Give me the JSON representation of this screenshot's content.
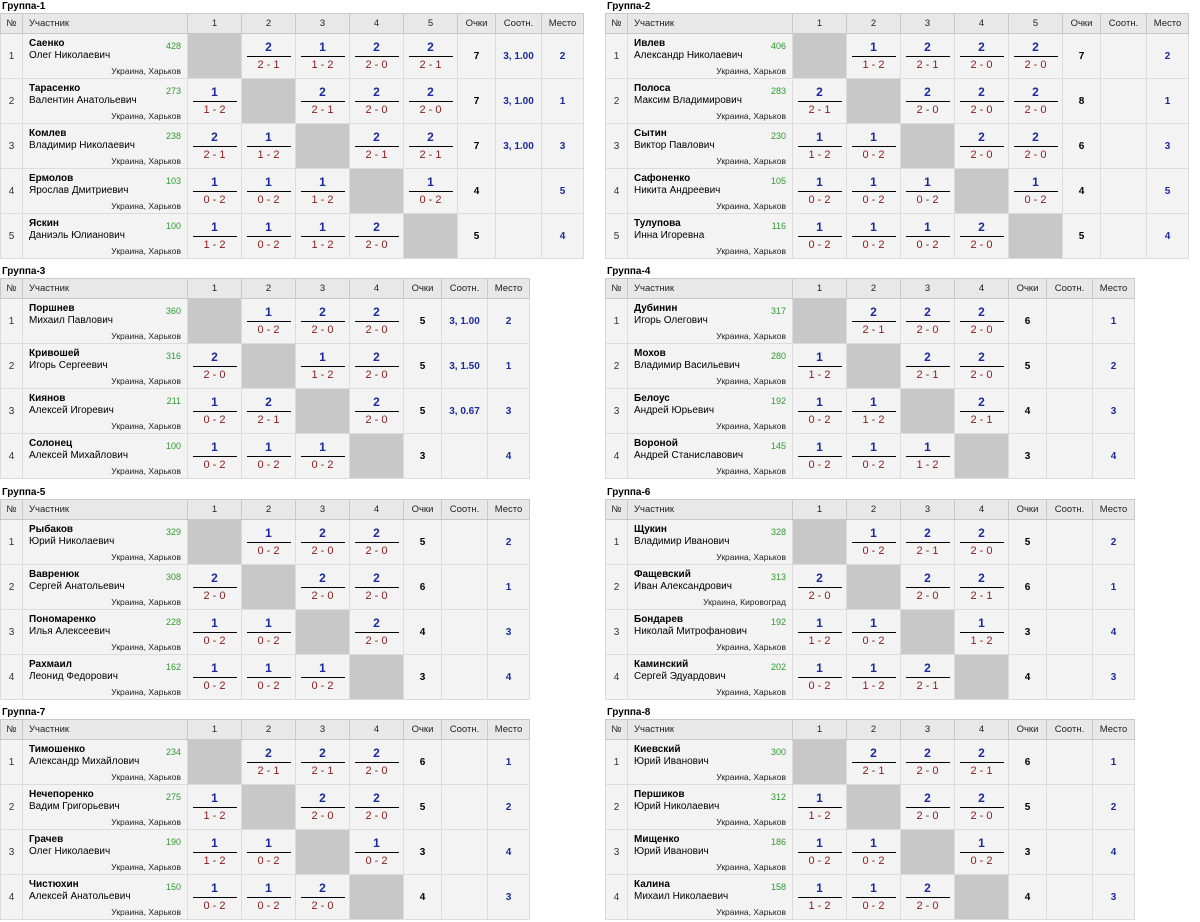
{
  "headers": {
    "no": "№",
    "participant": "Участник",
    "points": "Очки",
    "ratio": "Соотн.",
    "place": "Место"
  },
  "groups": [
    {
      "title": "Группа-1",
      "players": [
        {
          "no": "1",
          "last": "Саенко",
          "first": "Олег Николаевич",
          "rating": "428",
          "loc": "Украина, Харьков",
          "results": [
            null,
            {
              "w": "2",
              "s": "2 - 1"
            },
            {
              "w": "1",
              "s": "1 - 2"
            },
            {
              "w": "2",
              "s": "2 - 0"
            },
            {
              "w": "2",
              "s": "2 - 1"
            }
          ],
          "points": "7",
          "ratio": "3, 1.00",
          "place": "2"
        },
        {
          "no": "2",
          "last": "Тарасенко",
          "first": "Валентин Анатольевич",
          "rating": "273",
          "loc": "Украина, Харьков",
          "results": [
            {
              "w": "1",
              "s": "1 - 2"
            },
            null,
            {
              "w": "2",
              "s": "2 - 1"
            },
            {
              "w": "2",
              "s": "2 - 0"
            },
            {
              "w": "2",
              "s": "2 - 0"
            }
          ],
          "points": "7",
          "ratio": "3, 1.00",
          "place": "1"
        },
        {
          "no": "3",
          "last": "Комлев",
          "first": "Владимир Николаевич",
          "rating": "238",
          "loc": "Украина, Харьков",
          "results": [
            {
              "w": "2",
              "s": "2 - 1"
            },
            {
              "w": "1",
              "s": "1 - 2"
            },
            null,
            {
              "w": "2",
              "s": "2 - 1"
            },
            {
              "w": "2",
              "s": "2 - 1"
            }
          ],
          "points": "7",
          "ratio": "3, 1.00",
          "place": "3"
        },
        {
          "no": "4",
          "last": "Ермолов",
          "first": "Ярослав Дмитриевич",
          "rating": "103",
          "loc": "Украина, Харьков",
          "results": [
            {
              "w": "1",
              "s": "0 - 2"
            },
            {
              "w": "1",
              "s": "0 - 2"
            },
            {
              "w": "1",
              "s": "1 - 2"
            },
            null,
            {
              "w": "1",
              "s": "0 - 2"
            }
          ],
          "points": "4",
          "ratio": "",
          "place": "5"
        },
        {
          "no": "5",
          "last": "Яскин",
          "first": "Даниэль Юлианович",
          "rating": "100",
          "loc": "Украина, Харьков",
          "results": [
            {
              "w": "1",
              "s": "1 - 2"
            },
            {
              "w": "1",
              "s": "0 - 2"
            },
            {
              "w": "1",
              "s": "1 - 2"
            },
            {
              "w": "2",
              "s": "2 - 0"
            },
            null
          ],
          "points": "5",
          "ratio": "",
          "place": "4"
        }
      ]
    },
    {
      "title": "Группа-2",
      "players": [
        {
          "no": "1",
          "last": "Ивлев",
          "first": "Александр Николаевич",
          "rating": "406",
          "loc": "Украина, Харьков",
          "results": [
            null,
            {
              "w": "1",
              "s": "1 - 2"
            },
            {
              "w": "2",
              "s": "2 - 1"
            },
            {
              "w": "2",
              "s": "2 - 0"
            },
            {
              "w": "2",
              "s": "2 - 0"
            }
          ],
          "points": "7",
          "ratio": "",
          "place": "2"
        },
        {
          "no": "2",
          "last": "Полоса",
          "first": "Максим Владимирович",
          "rating": "283",
          "loc": "Украина, Харьков",
          "results": [
            {
              "w": "2",
              "s": "2 - 1"
            },
            null,
            {
              "w": "2",
              "s": "2 - 0"
            },
            {
              "w": "2",
              "s": "2 - 0"
            },
            {
              "w": "2",
              "s": "2 - 0"
            }
          ],
          "points": "8",
          "ratio": "",
          "place": "1"
        },
        {
          "no": "3",
          "last": "Сытин",
          "first": "Виктор Павлович",
          "rating": "230",
          "loc": "Украина, Харьков",
          "results": [
            {
              "w": "1",
              "s": "1 - 2"
            },
            {
              "w": "1",
              "s": "0 - 2"
            },
            null,
            {
              "w": "2",
              "s": "2 - 0"
            },
            {
              "w": "2",
              "s": "2 - 0"
            }
          ],
          "points": "6",
          "ratio": "",
          "place": "3"
        },
        {
          "no": "4",
          "last": "Сафоненко",
          "first": "Никита Андреевич",
          "rating": "105",
          "loc": "Украина, Харьков",
          "results": [
            {
              "w": "1",
              "s": "0 - 2"
            },
            {
              "w": "1",
              "s": "0 - 2"
            },
            {
              "w": "1",
              "s": "0 - 2"
            },
            null,
            {
              "w": "1",
              "s": "0 - 2"
            }
          ],
          "points": "4",
          "ratio": "",
          "place": "5"
        },
        {
          "no": "5",
          "last": "Тулупова",
          "first": "Инна Игоревна",
          "rating": "116",
          "loc": "Украина, Харьков",
          "results": [
            {
              "w": "1",
              "s": "0 - 2"
            },
            {
              "w": "1",
              "s": "0 - 2"
            },
            {
              "w": "1",
              "s": "0 - 2"
            },
            {
              "w": "2",
              "s": "2 - 0"
            },
            null
          ],
          "points": "5",
          "ratio": "",
          "place": "4"
        }
      ]
    },
    {
      "title": "Группа-3",
      "players": [
        {
          "no": "1",
          "last": "Поршнев",
          "first": "Михаил Павлович",
          "rating": "360",
          "loc": "Украина, Харьков",
          "results": [
            null,
            {
              "w": "1",
              "s": "0 - 2"
            },
            {
              "w": "2",
              "s": "2 - 0"
            },
            {
              "w": "2",
              "s": "2 - 0"
            }
          ],
          "points": "5",
          "ratio": "3, 1.00",
          "place": "2"
        },
        {
          "no": "2",
          "last": "Кривошей",
          "first": "Игорь Сергеевич",
          "rating": "316",
          "loc": "Украина, Харьков",
          "results": [
            {
              "w": "2",
              "s": "2 - 0"
            },
            null,
            {
              "w": "1",
              "s": "1 - 2"
            },
            {
              "w": "2",
              "s": "2 - 0"
            }
          ],
          "points": "5",
          "ratio": "3, 1.50",
          "place": "1"
        },
        {
          "no": "3",
          "last": "Киянов",
          "first": "Алексей Игоревич",
          "rating": "211",
          "loc": "Украина, Харьков",
          "results": [
            {
              "w": "1",
              "s": "0 - 2"
            },
            {
              "w": "2",
              "s": "2 - 1"
            },
            null,
            {
              "w": "2",
              "s": "2 - 0"
            }
          ],
          "points": "5",
          "ratio": "3, 0.67",
          "place": "3"
        },
        {
          "no": "4",
          "last": "Солонец",
          "first": "Алексей Михайлович",
          "rating": "100",
          "loc": "Украина, Харьков",
          "results": [
            {
              "w": "1",
              "s": "0 - 2"
            },
            {
              "w": "1",
              "s": "0 - 2"
            },
            {
              "w": "1",
              "s": "0 - 2"
            },
            null
          ],
          "points": "3",
          "ratio": "",
          "place": "4"
        }
      ]
    },
    {
      "title": "Группа-4",
      "players": [
        {
          "no": "1",
          "last": "Дубинин",
          "first": "Игорь Олегович",
          "rating": "317",
          "loc": "Украина, Харьков",
          "results": [
            null,
            {
              "w": "2",
              "s": "2 - 1"
            },
            {
              "w": "2",
              "s": "2 - 0"
            },
            {
              "w": "2",
              "s": "2 - 0"
            }
          ],
          "points": "6",
          "ratio": "",
          "place": "1"
        },
        {
          "no": "2",
          "last": "Мохов",
          "first": "Владимир Васильевич",
          "rating": "280",
          "loc": "Украина, Харьков",
          "results": [
            {
              "w": "1",
              "s": "1 - 2"
            },
            null,
            {
              "w": "2",
              "s": "2 - 1"
            },
            {
              "w": "2",
              "s": "2 - 0"
            }
          ],
          "points": "5",
          "ratio": "",
          "place": "2"
        },
        {
          "no": "3",
          "last": "Белоус",
          "first": "Андрей Юрьевич",
          "rating": "192",
          "loc": "Украина, Харьков",
          "results": [
            {
              "w": "1",
              "s": "0 - 2"
            },
            {
              "w": "1",
              "s": "1 - 2"
            },
            null,
            {
              "w": "2",
              "s": "2 - 1"
            }
          ],
          "points": "4",
          "ratio": "",
          "place": "3"
        },
        {
          "no": "4",
          "last": "Вороной",
          "first": "Андрей Станиславович",
          "rating": "145",
          "loc": "Украина, Харьков",
          "results": [
            {
              "w": "1",
              "s": "0 - 2"
            },
            {
              "w": "1",
              "s": "0 - 2"
            },
            {
              "w": "1",
              "s": "1 - 2"
            },
            null
          ],
          "points": "3",
          "ratio": "",
          "place": "4"
        }
      ]
    },
    {
      "title": "Группа-5",
      "players": [
        {
          "no": "1",
          "last": "Рыбаков",
          "first": "Юрий Николаевич",
          "rating": "329",
          "loc": "Украина, Харьков",
          "results": [
            null,
            {
              "w": "1",
              "s": "0 - 2"
            },
            {
              "w": "2",
              "s": "2 - 0"
            },
            {
              "w": "2",
              "s": "2 - 0"
            }
          ],
          "points": "5",
          "ratio": "",
          "place": "2"
        },
        {
          "no": "2",
          "last": "Вавренюк",
          "first": "Сергей Анатольевич",
          "rating": "308",
          "loc": "Украина, Харьков",
          "results": [
            {
              "w": "2",
              "s": "2 - 0"
            },
            null,
            {
              "w": "2",
              "s": "2 - 0"
            },
            {
              "w": "2",
              "s": "2 - 0"
            }
          ],
          "points": "6",
          "ratio": "",
          "place": "1"
        },
        {
          "no": "3",
          "last": "Пономаренко",
          "first": "Илья Алексеевич",
          "rating": "228",
          "loc": "Украина, Харьков",
          "results": [
            {
              "w": "1",
              "s": "0 - 2"
            },
            {
              "w": "1",
              "s": "0 - 2"
            },
            null,
            {
              "w": "2",
              "s": "2 - 0"
            }
          ],
          "points": "4",
          "ratio": "",
          "place": "3"
        },
        {
          "no": "4",
          "last": "Рахмаил",
          "first": "Леонид Федорович",
          "rating": "162",
          "loc": "Украина, Харьков",
          "results": [
            {
              "w": "1",
              "s": "0 - 2"
            },
            {
              "w": "1",
              "s": "0 - 2"
            },
            {
              "w": "1",
              "s": "0 - 2"
            },
            null
          ],
          "points": "3",
          "ratio": "",
          "place": "4"
        }
      ]
    },
    {
      "title": "Группа-6",
      "players": [
        {
          "no": "1",
          "last": "Щукин",
          "first": "Владимир Иванович",
          "rating": "328",
          "loc": "Украина, Харьков",
          "results": [
            null,
            {
              "w": "1",
              "s": "0 - 2"
            },
            {
              "w": "2",
              "s": "2 - 1"
            },
            {
              "w": "2",
              "s": "2 - 0"
            }
          ],
          "points": "5",
          "ratio": "",
          "place": "2"
        },
        {
          "no": "2",
          "last": "Фащевский",
          "first": "Иван Александрович",
          "rating": "313",
          "loc": "Украина, Кировоград",
          "results": [
            {
              "w": "2",
              "s": "2 - 0"
            },
            null,
            {
              "w": "2",
              "s": "2 - 0"
            },
            {
              "w": "2",
              "s": "2 - 1"
            }
          ],
          "points": "6",
          "ratio": "",
          "place": "1"
        },
        {
          "no": "3",
          "last": "Бондарев",
          "first": "Николай Митрофанович",
          "rating": "192",
          "loc": "Украина, Харьков",
          "results": [
            {
              "w": "1",
              "s": "1 - 2"
            },
            {
              "w": "1",
              "s": "0 - 2"
            },
            null,
            {
              "w": "1",
              "s": "1 - 2"
            }
          ],
          "points": "3",
          "ratio": "",
          "place": "4"
        },
        {
          "no": "4",
          "last": "Каминский",
          "first": "Сергей Эдуардович",
          "rating": "202",
          "loc": "Украина, Харьков",
          "results": [
            {
              "w": "1",
              "s": "0 - 2"
            },
            {
              "w": "1",
              "s": "1 - 2"
            },
            {
              "w": "2",
              "s": "2 - 1"
            },
            null
          ],
          "points": "4",
          "ratio": "",
          "place": "3"
        }
      ]
    },
    {
      "title": "Группа-7",
      "players": [
        {
          "no": "1",
          "last": "Тимошенко",
          "first": "Александр Михайлович",
          "rating": "234",
          "loc": "Украина, Харьков",
          "results": [
            null,
            {
              "w": "2",
              "s": "2 - 1"
            },
            {
              "w": "2",
              "s": "2 - 1"
            },
            {
              "w": "2",
              "s": "2 - 0"
            }
          ],
          "points": "6",
          "ratio": "",
          "place": "1"
        },
        {
          "no": "2",
          "last": "Нечепоренко",
          "first": "Вадим Григорьевич",
          "rating": "275",
          "loc": "Украина, Харьков",
          "results": [
            {
              "w": "1",
              "s": "1 - 2"
            },
            null,
            {
              "w": "2",
              "s": "2 - 0"
            },
            {
              "w": "2",
              "s": "2 - 0"
            }
          ],
          "points": "5",
          "ratio": "",
          "place": "2"
        },
        {
          "no": "3",
          "last": "Грачев",
          "first": "Олег Николаевич",
          "rating": "190",
          "loc": "Украина, Харьков",
          "results": [
            {
              "w": "1",
              "s": "1 - 2"
            },
            {
              "w": "1",
              "s": "0 - 2"
            },
            null,
            {
              "w": "1",
              "s": "0 - 2"
            }
          ],
          "points": "3",
          "ratio": "",
          "place": "4"
        },
        {
          "no": "4",
          "last": "Чистюхин",
          "first": "Алексей Анатольевич",
          "rating": "150",
          "loc": "Украина, Харьков",
          "results": [
            {
              "w": "1",
              "s": "0 - 2"
            },
            {
              "w": "1",
              "s": "0 - 2"
            },
            {
              "w": "2",
              "s": "2 - 0"
            },
            null
          ],
          "points": "4",
          "ratio": "",
          "place": "3"
        }
      ]
    },
    {
      "title": "Группа-8",
      "players": [
        {
          "no": "1",
          "last": "Киевский",
          "first": "Юрий Иванович",
          "rating": "300",
          "loc": "Украина, Харьков",
          "results": [
            null,
            {
              "w": "2",
              "s": "2 - 1"
            },
            {
              "w": "2",
              "s": "2 - 0"
            },
            {
              "w": "2",
              "s": "2 - 1"
            }
          ],
          "points": "6",
          "ratio": "",
          "place": "1"
        },
        {
          "no": "2",
          "last": "Першиков",
          "first": "Юрий Николаевич",
          "rating": "312",
          "loc": "Украина, Харьков",
          "results": [
            {
              "w": "1",
              "s": "1 - 2"
            },
            null,
            {
              "w": "2",
              "s": "2 - 0"
            },
            {
              "w": "2",
              "s": "2 - 0"
            }
          ],
          "points": "5",
          "ratio": "",
          "place": "2"
        },
        {
          "no": "3",
          "last": "Мищенко",
          "first": "Юрий Иванович",
          "rating": "186",
          "loc": "Украина, Харьков",
          "results": [
            {
              "w": "1",
              "s": "0 - 2"
            },
            {
              "w": "1",
              "s": "0 - 2"
            },
            null,
            {
              "w": "1",
              "s": "0 - 2"
            }
          ],
          "points": "3",
          "ratio": "",
          "place": "4"
        },
        {
          "no": "4",
          "last": "Калина",
          "first": "Михаил Николаевич",
          "rating": "158",
          "loc": "Украина, Харьков",
          "results": [
            {
              "w": "1",
              "s": "1 - 2"
            },
            {
              "w": "1",
              "s": "0 - 2"
            },
            {
              "w": "2",
              "s": "2 - 0"
            },
            null
          ],
          "points": "4",
          "ratio": "",
          "place": "3"
        }
      ]
    }
  ]
}
